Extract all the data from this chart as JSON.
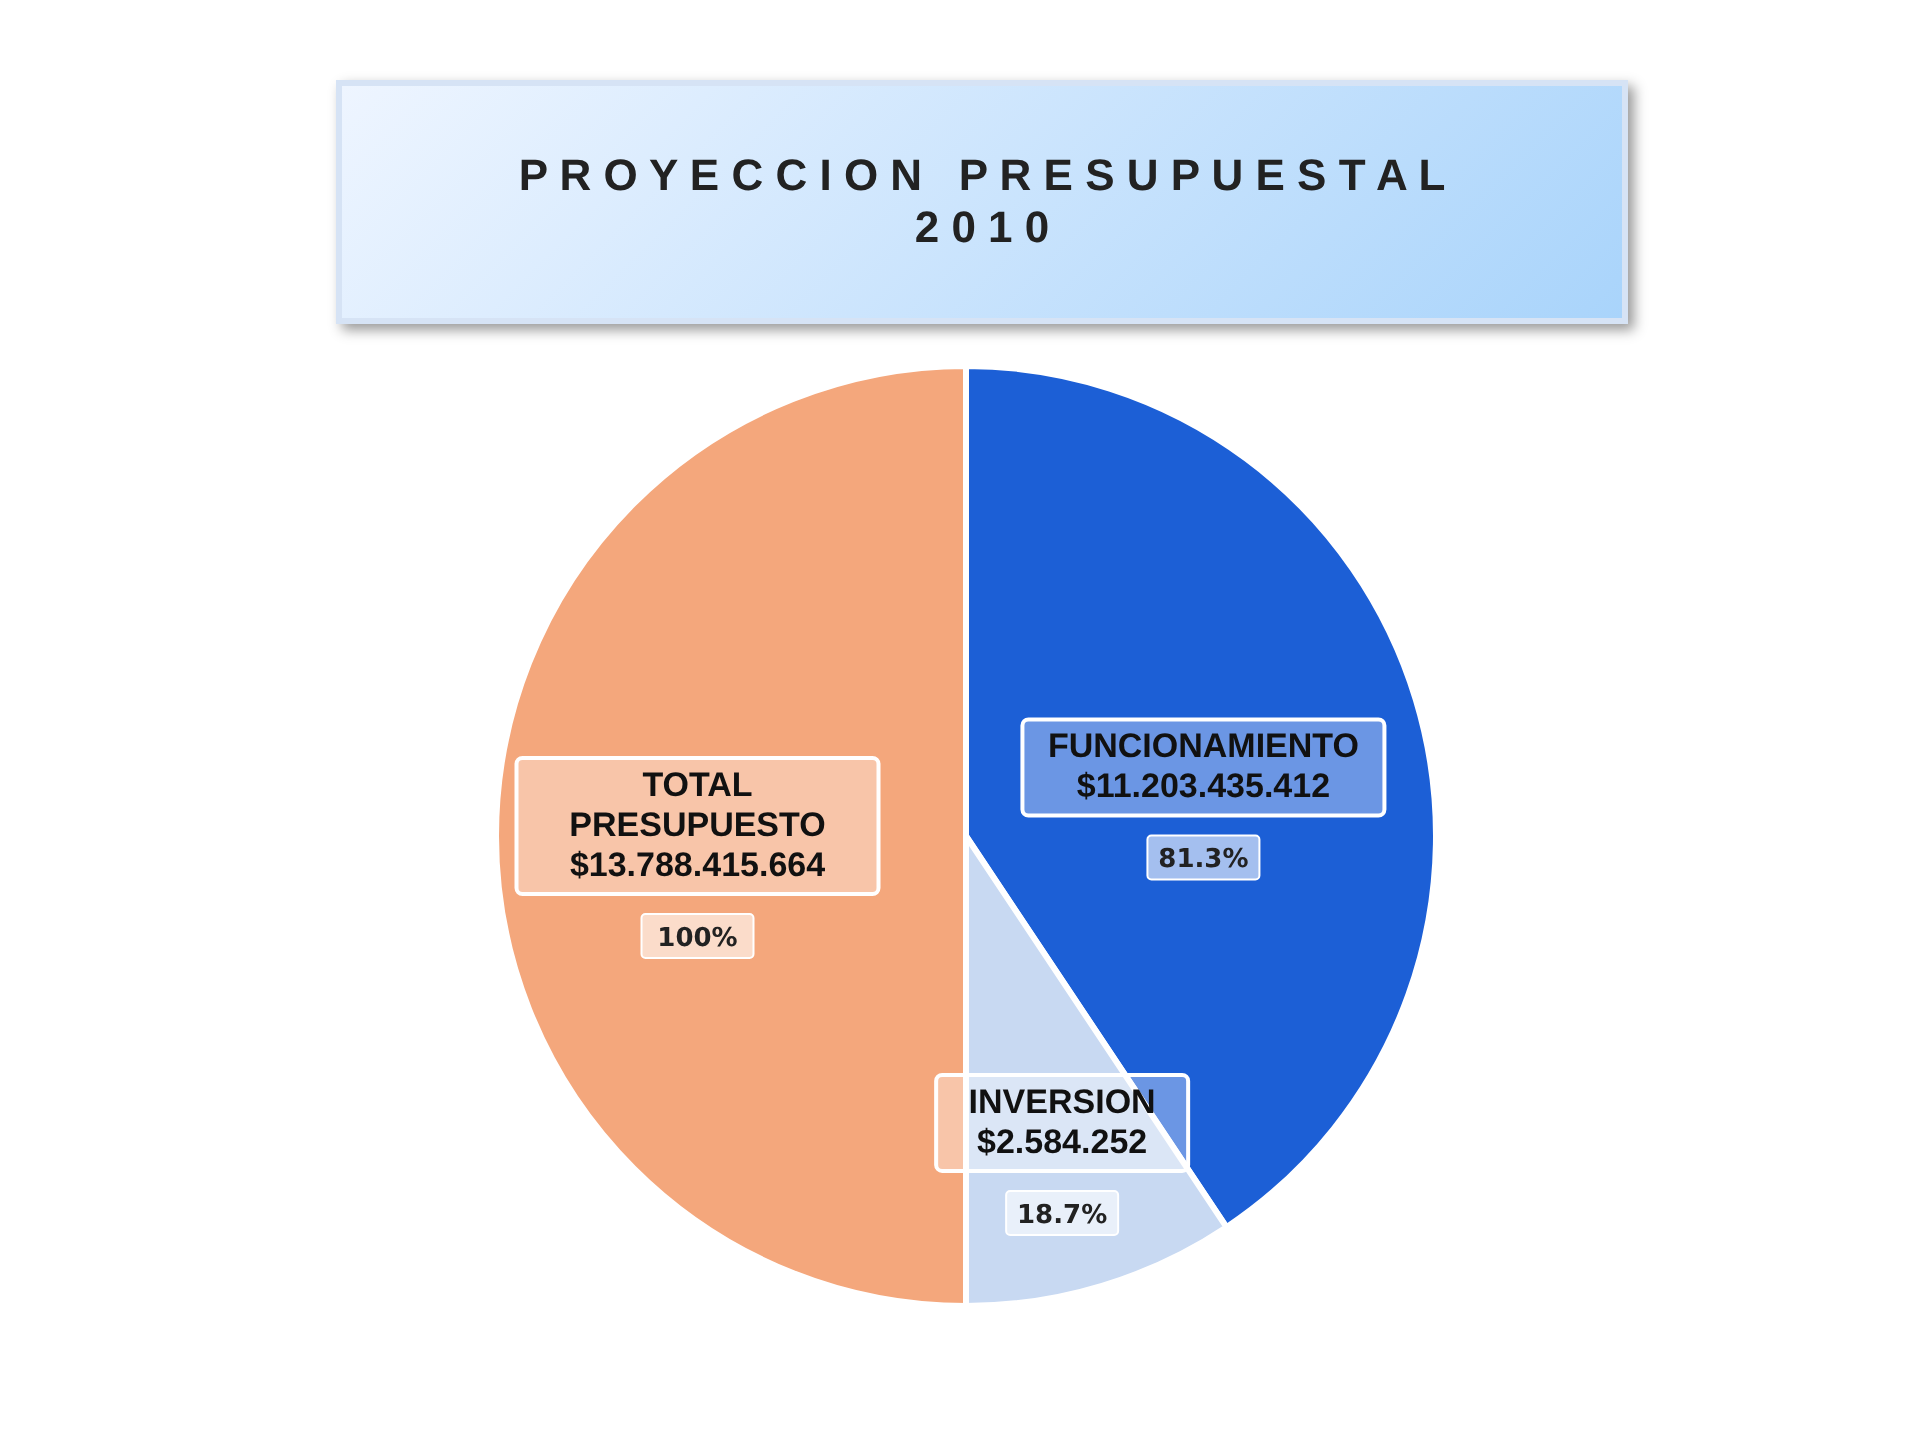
{
  "chart_data": {
    "type": "pie",
    "title": "P R O Y E C C I O N   P R E S U P U E S T A L\n2 0 1 0",
    "categories": [
      "TOTAL\nPRESUPUESTO\n$13.788.415.664",
      "FUNCIONAMIENTO\n$11.203.435.412",
      "INVERSION\n$2.584.252"
    ],
    "values": [
      100,
      81.3,
      18.7
    ],
    "value_labels": [
      "100%",
      "81.3%",
      "18.7%"
    ],
    "colors": [
      "#f4a77c",
      "#1c5fd6",
      "#c8d9f2"
    ]
  }
}
